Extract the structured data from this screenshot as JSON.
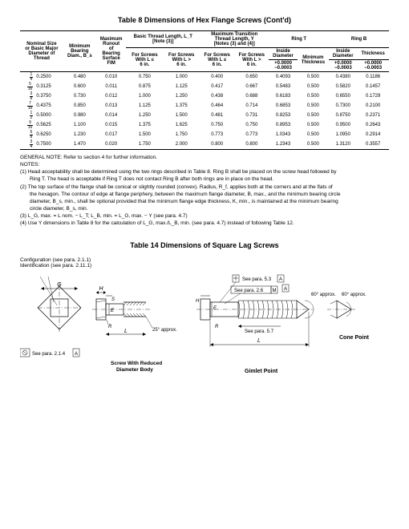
{
  "table8": {
    "title": "Table 8   Dimensions of Hex Flange Screws (Cont'd)",
    "headers": {
      "nominal": [
        "Nominal Size",
        "or Basic Major",
        "Diameter of",
        "Thread"
      ],
      "minBearing": [
        "Minimum",
        "Bearing",
        "Diam., B_s"
      ],
      "maxRunout": [
        "Maximum",
        "Runout",
        "of",
        "Bearing",
        "Surface",
        "FIM"
      ],
      "basicThread": [
        "Basic Thread Length, L_T",
        "[Note (3)]"
      ],
      "forScrewsLe6a": [
        "For Screws",
        "With L ≤",
        "6 in."
      ],
      "forScrewsGt6a": [
        "For Screws",
        "With L >",
        "6 in."
      ],
      "maxTrans": [
        "Maximum Transition",
        "Thread Length, Y",
        "[Notes (3) and (4)]"
      ],
      "forScrewsLe6b": [
        "For Screws",
        "With L ≤",
        "6 in."
      ],
      "forScrewsGt6b": [
        "For Screws",
        "With L >",
        "6 in."
      ],
      "ringT": "Ring T",
      "ringB": "Ring B",
      "insideDia": [
        "Inside",
        "Diameter"
      ],
      "minThick": [
        "Minimum",
        "Thickness"
      ],
      "thick": "Thickness",
      "tol1": [
        "+0.0000",
        "−0.0003"
      ],
      "tol2": [
        "+0.0000",
        "−0.0003"
      ]
    },
    "rows": [
      {
        "f": [
          "1",
          "4"
        ],
        "dec": "0.2500",
        "bs": "0.480",
        "run": "0.010",
        "lt1": "0.750",
        "lt2": "1.000",
        "y1": "0.400",
        "y2": "0.650",
        "rtd": "0.4093",
        "rtt": "0.500",
        "rbd": "0.4380",
        "rbt": "0.1186"
      },
      {
        "f": [
          "5",
          "16"
        ],
        "dec": "0.3125",
        "bs": "0.600",
        "run": "0.011",
        "lt1": "0.875",
        "lt2": "1.125",
        "y1": "0.417",
        "y2": "0.667",
        "rtd": "0.5483",
        "rtt": "0.500",
        "rbd": "0.5820",
        "rbt": "0.1457"
      },
      {
        "f": [
          "3",
          "8"
        ],
        "dec": "0.3750",
        "bs": "0.730",
        "run": "0.012",
        "lt1": "1.000",
        "lt2": "1.250",
        "y1": "0.438",
        "y2": "0.688",
        "rtd": "0.6183",
        "rtt": "0.500",
        "rbd": "0.6550",
        "rbt": "0.1729"
      },
      {
        "f": [
          "7",
          "16"
        ],
        "dec": "0.4375",
        "bs": "0.850",
        "run": "0.013",
        "lt1": "1.125",
        "lt2": "1.375",
        "y1": "0.464",
        "y2": "0.714",
        "rtd": "0.6853",
        "rtt": "0.500",
        "rbd": "0.7300",
        "rbt": "0.2100"
      },
      {
        "f": [
          "1",
          "2"
        ],
        "dec": "0.5000",
        "bs": "0.980",
        "run": "0.014",
        "lt1": "1.250",
        "lt2": "1.500",
        "y1": "0.481",
        "y2": "0.731",
        "rtd": "0.8253",
        "rtt": "0.500",
        "rbd": "0.8750",
        "rbt": "0.2371"
      },
      {
        "f": [
          "9",
          "16"
        ],
        "dec": "0.5625",
        "bs": "1.100",
        "run": "0.015",
        "lt1": "1.375",
        "lt2": "1.625",
        "y1": "0.750",
        "y2": "0.750",
        "rtd": "0.8953",
        "rtt": "0.500",
        "rbd": "0.9500",
        "rbt": "0.2643"
      },
      {
        "f": [
          "5",
          "8"
        ],
        "dec": "0.6250",
        "bs": "1.230",
        "run": "0.017",
        "lt1": "1.500",
        "lt2": "1.750",
        "y1": "0.773",
        "y2": "0.773",
        "rtd": "1.0343",
        "rtt": "0.500",
        "rbd": "1.0950",
        "rbt": "0.2914"
      },
      {
        "f": [
          "3",
          "4"
        ],
        "dec": "0.7500",
        "bs": "1.470",
        "run": "0.020",
        "lt1": "1.750",
        "lt2": "2.000",
        "y1": "0.800",
        "y2": "0.800",
        "rtd": "1.2343",
        "rtt": "0.500",
        "rbd": "1.3120",
        "rbt": "0.3557"
      }
    ]
  },
  "notes": {
    "general": "GENERAL NOTE:   Refer to section 4 for further information.",
    "label": "NOTES:",
    "n1a": "(1)  Head acceptability shall be determined using the two rings described in Table 8. Ring B shall be placed on the screw head followed by",
    "n1b": "Ring T. The head is acceptable if Ring T does not contact Ring B after both rings are in place on the head.",
    "n2a": "(2)  The top surface of the flange shall be conical or slightly rounded (convex). Radius, R_f, applies both at the corners and at the flats of",
    "n2b": "the hexagon. The contour of edge at flange periphery, between the maximum flange diameter, B, max., and the minimum bearing circle",
    "n2c": "diameter, B_s, min., shall be optional provided that the minimum flange edge thickness, K, min., is maintained at the minimum bearing",
    "n2d": "circle diameter, B_s, min.",
    "n3": "(3)  L_G, max. = L nom. − L_T; L_B, min. = L_G, max. − Y (see para. 4.7)",
    "n4": "(4)  Use Y dimensions in Table 8 for the calculation of L_G, max./L_B, min. (see para. 4.7) instead of following Table 12."
  },
  "table14": {
    "title": "Table 14   Dimensions of Square Lag Screws",
    "config": "Configuration (see para. 2.1.1)",
    "ident": "Identification (see para. 2.11.1)",
    "see214": "See para. 2.1.4",
    "see53": "See para. 5.3",
    "see26": "See para. 2.6",
    "see57": "See para. 5.7",
    "angle": "60° approx.",
    "reduced": "Screw With Reduced Diameter Body",
    "gimlet": "Gimlet Point",
    "cone": "Cone Point",
    "approx25": "25° approx.",
    "labels": {
      "G": "G",
      "H": "H",
      "S": "S",
      "L": "L",
      "R": "R",
      "E": "E",
      "A": "A",
      "M": "M"
    }
  }
}
